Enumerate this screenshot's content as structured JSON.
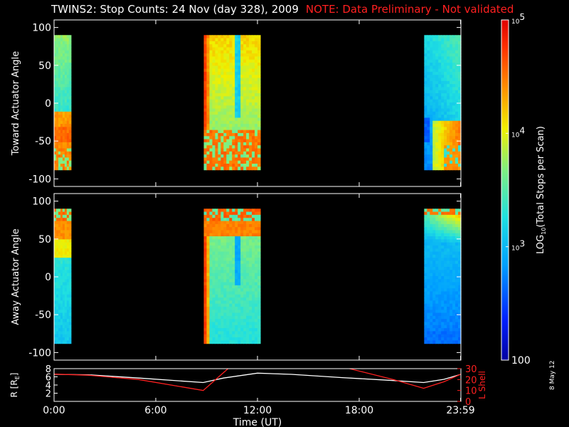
{
  "header": {
    "title": "TWINS2: Stop Counts: 24 Nov (day 328), 2009",
    "note": "NOTE: Data Preliminary - Not validated"
  },
  "date_stamp": "8 May 12",
  "colors": {
    "background": "#000000",
    "axes": "#ffffff",
    "note": "#ff2020",
    "r_line": "#ffffff",
    "l_shell_line": "#ff2020"
  },
  "chart_data": [
    {
      "type": "heatmap",
      "name": "toward",
      "ylabel": "Toward Actuator Angle",
      "ylim": [
        -110,
        110
      ],
      "yticks": [
        100,
        50,
        0,
        -50,
        -100
      ],
      "x_range_hours": [
        0,
        24
      ],
      "data_y_range": [
        -88,
        90
      ],
      "colorscale": "log",
      "blocks": [
        {
          "start": "0:00",
          "end": "1:00",
          "pattern": "A"
        },
        {
          "start": "8:50",
          "end": "12:10",
          "pattern": "B"
        },
        {
          "start": "21:50",
          "end": "24:00",
          "pattern": "C"
        }
      ]
    },
    {
      "type": "heatmap",
      "name": "away",
      "ylabel": "Away Actuator Angle",
      "ylim": [
        -110,
        110
      ],
      "yticks": [
        100,
        50,
        0,
        -50,
        -100
      ],
      "x_range_hours": [
        0,
        24
      ],
      "data_y_range": [
        -88,
        90
      ],
      "colorscale": "log",
      "blocks": [
        {
          "start": "0:00",
          "end": "1:00",
          "pattern": "D"
        },
        {
          "start": "8:50",
          "end": "12:10",
          "pattern": "E"
        },
        {
          "start": "21:50",
          "end": "24:00",
          "pattern": "F"
        }
      ]
    },
    {
      "type": "line",
      "name": "orbit",
      "ylabel": "R [R",
      "ylabel_sub": "E",
      "ylabel_close": "]",
      "ylim": [
        0,
        8
      ],
      "yticks": [
        2,
        4,
        6,
        8
      ],
      "y2label": "L Shell",
      "y2lim": [
        0,
        30
      ],
      "y2ticks": [
        0,
        10,
        20,
        30
      ],
      "xlabel": "Time (UT)",
      "xticks": [
        "0:00",
        "6:00",
        "12:00",
        "18:00",
        "23:59"
      ],
      "xtick_hours": [
        0,
        6,
        12,
        18,
        23.98
      ],
      "series": [
        {
          "axis": "left",
          "color": "#ffffff",
          "x": [
            0,
            2,
            5,
            8.8,
            10,
            12,
            14,
            17,
            20,
            21.8,
            23,
            24
          ],
          "y": [
            6.6,
            6.5,
            5.7,
            4.6,
            5.7,
            6.9,
            6.6,
            5.8,
            5.1,
            4.6,
            5.4,
            6.6
          ]
        },
        {
          "axis": "right",
          "color": "#ff2020",
          "x": [
            0,
            2,
            5,
            8.8,
            10.3
          ],
          "y": [
            25,
            24,
            20,
            10,
            30.5
          ]
        },
        {
          "axis": "right",
          "color": "#ff2020",
          "x": [
            17.3,
            20,
            21.8,
            23,
            24
          ],
          "y": [
            30.5,
            20,
            12,
            18,
            25
          ]
        }
      ]
    }
  ],
  "colorbar": {
    "label_prefix": "LOG",
    "label_sub": "10",
    "label_suffix": "(Total Stops per Scan)",
    "ticks": [
      {
        "base": "10",
        "exp": "5",
        "value": 100000
      },
      {
        "base": "10",
        "exp": "4",
        "value": 10000
      },
      {
        "base": "10",
        "exp": "3",
        "value": 1000
      },
      {
        "base": "100",
        "exp": "",
        "value": 100
      }
    ],
    "range": [
      100,
      100000
    ],
    "scale": "log"
  }
}
